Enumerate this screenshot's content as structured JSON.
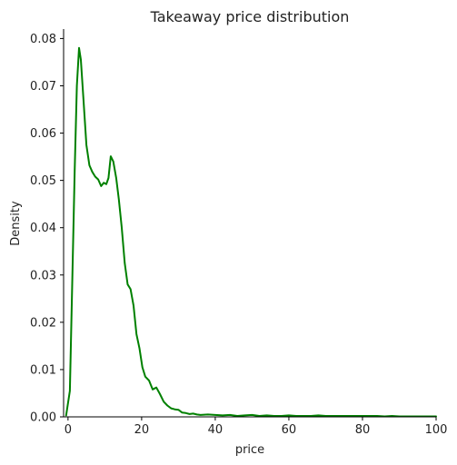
{
  "chart_data": {
    "type": "line",
    "title": "Takeaway price distribution",
    "xlabel": "price",
    "ylabel": "Density",
    "xlim": [
      -1.2,
      100
    ],
    "ylim": [
      0,
      0.082
    ],
    "grid": false,
    "line_color": "#008000",
    "xticks": [
      0,
      20,
      40,
      60,
      80,
      100
    ],
    "xtick_labels": [
      "0",
      "20",
      "40",
      "60",
      "80",
      "100"
    ],
    "yticks": [
      0.0,
      0.01,
      0.02,
      0.03,
      0.04,
      0.05,
      0.06,
      0.07,
      0.08
    ],
    "ytick_labels": [
      "0.00",
      "0.01",
      "0.02",
      "0.03",
      "0.04",
      "0.05",
      "0.06",
      "0.07",
      "0.08"
    ],
    "series": [
      {
        "x": [
          -0.5,
          0.5,
          1.2,
          1.8,
          2.4,
          3.0,
          3.5,
          4.2,
          5.0,
          5.8,
          6.6,
          7.4,
          8.2,
          9.0,
          9.7,
          10.4,
          11.0,
          11.6,
          12.3,
          13.1,
          13.8,
          14.6,
          15.4,
          16.2,
          17.0,
          17.8,
          18.6,
          19.4,
          20.2,
          21.0,
          22.0,
          23.0,
          24.0,
          25.0,
          26.0,
          27.0,
          28.0,
          29.0,
          30.0,
          31.0,
          32.0,
          33.0,
          34.0,
          35.0,
          36.0,
          38.0,
          40.0,
          42.0,
          44.0,
          46.0,
          48.0,
          50.0,
          52.0,
          54.0,
          56.0,
          58.0,
          60.0,
          62.0,
          64.0,
          66.0,
          68.0,
          70.0,
          72.0,
          74.0,
          76.0,
          78.0,
          80.0,
          82.0,
          84.0,
          86.0,
          88.0,
          90.0,
          92.0,
          94.0,
          96.0,
          98.0,
          100.0
        ],
        "y": [
          0.0003,
          0.0055,
          0.03,
          0.052,
          0.07,
          0.078,
          0.0755,
          0.067,
          0.0575,
          0.0532,
          0.0518,
          0.0508,
          0.0502,
          0.0488,
          0.0495,
          0.0492,
          0.0505,
          0.0551,
          0.054,
          0.0505,
          0.046,
          0.04,
          0.0325,
          0.028,
          0.027,
          0.0235,
          0.0175,
          0.0145,
          0.0105,
          0.0085,
          0.0077,
          0.0058,
          0.0062,
          0.0048,
          0.0032,
          0.0024,
          0.0018,
          0.0016,
          0.0015,
          0.0009,
          0.0008,
          0.0006,
          0.0007,
          0.0005,
          0.0004,
          0.0005,
          0.0004,
          0.0003,
          0.0004,
          0.0002,
          0.0003,
          0.0004,
          0.0002,
          0.0003,
          0.0002,
          0.0002,
          0.0003,
          0.0002,
          0.0002,
          0.0002,
          0.0003,
          0.0002,
          0.0002,
          0.0002,
          0.0002,
          0.0002,
          0.0002,
          0.0002,
          0.0002,
          0.0001,
          0.0002,
          0.0001,
          0.0001,
          0.0001,
          0.0001,
          0.0001,
          0.0001
        ]
      }
    ]
  }
}
